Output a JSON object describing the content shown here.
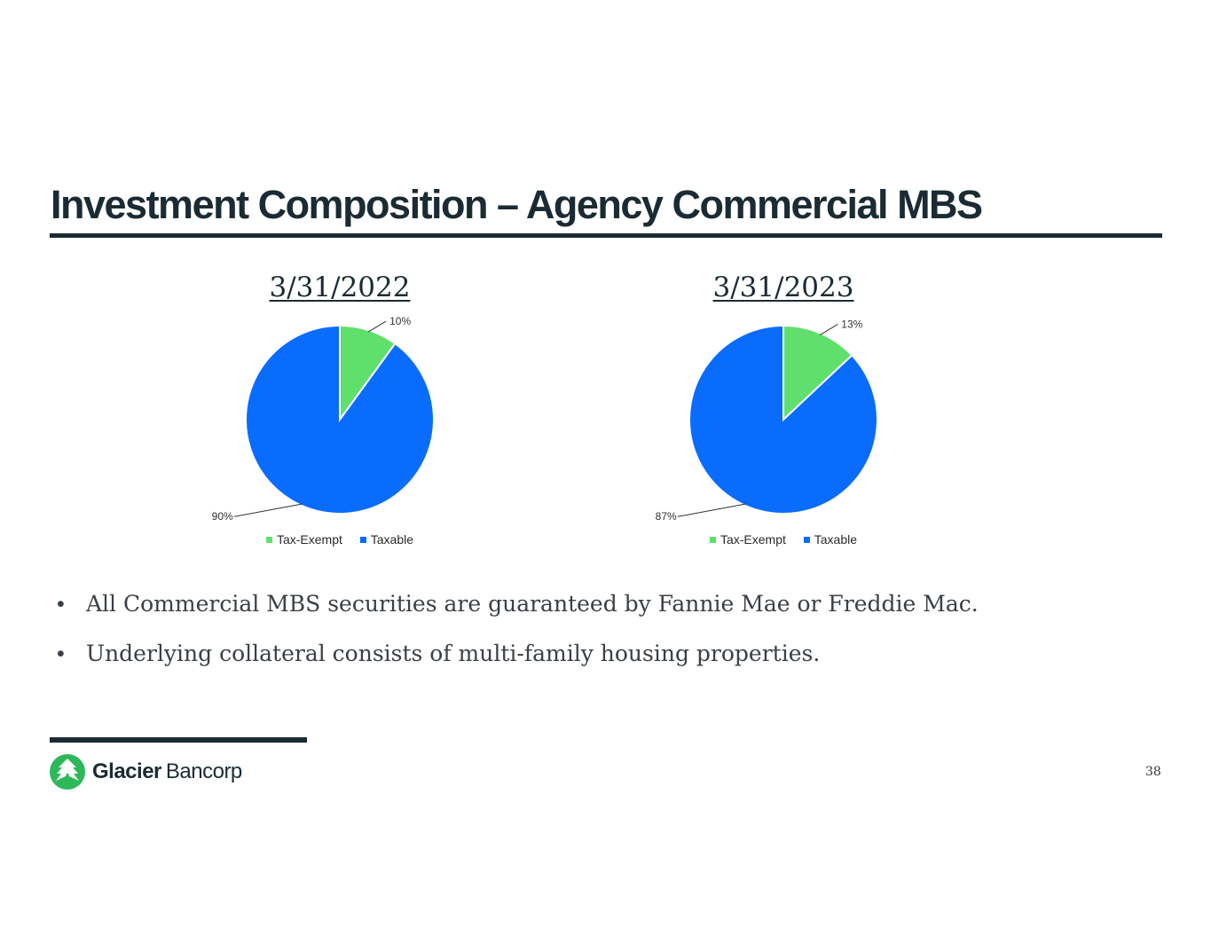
{
  "slide": {
    "title": "Investment Composition – Agency Commercial MBS",
    "page_number": "38"
  },
  "logo": {
    "name_bold": "Glacier",
    "name_light": "Bancorp"
  },
  "bullets": [
    "All Commercial MBS securities are guaranteed by Fannie Mae or Freddie Mac.",
    "Underlying collateral consists of multi-family housing properties."
  ],
  "colors": {
    "tax_exempt": "#5fe06c",
    "taxable": "#0a6cfd",
    "dark": "#1b2b33",
    "logo_green": "#2db85a"
  },
  "chart_data": [
    {
      "type": "pie",
      "title": "3/31/2022",
      "categories": [
        "Tax-Exempt",
        "Taxable"
      ],
      "values": [
        10,
        90
      ],
      "labels": [
        "10%",
        "90%"
      ],
      "legend": "bottom"
    },
    {
      "type": "pie",
      "title": "3/31/2023",
      "categories": [
        "Tax-Exempt",
        "Taxable"
      ],
      "values": [
        13,
        87
      ],
      "labels": [
        "13%",
        "87%"
      ],
      "legend": "bottom"
    }
  ]
}
